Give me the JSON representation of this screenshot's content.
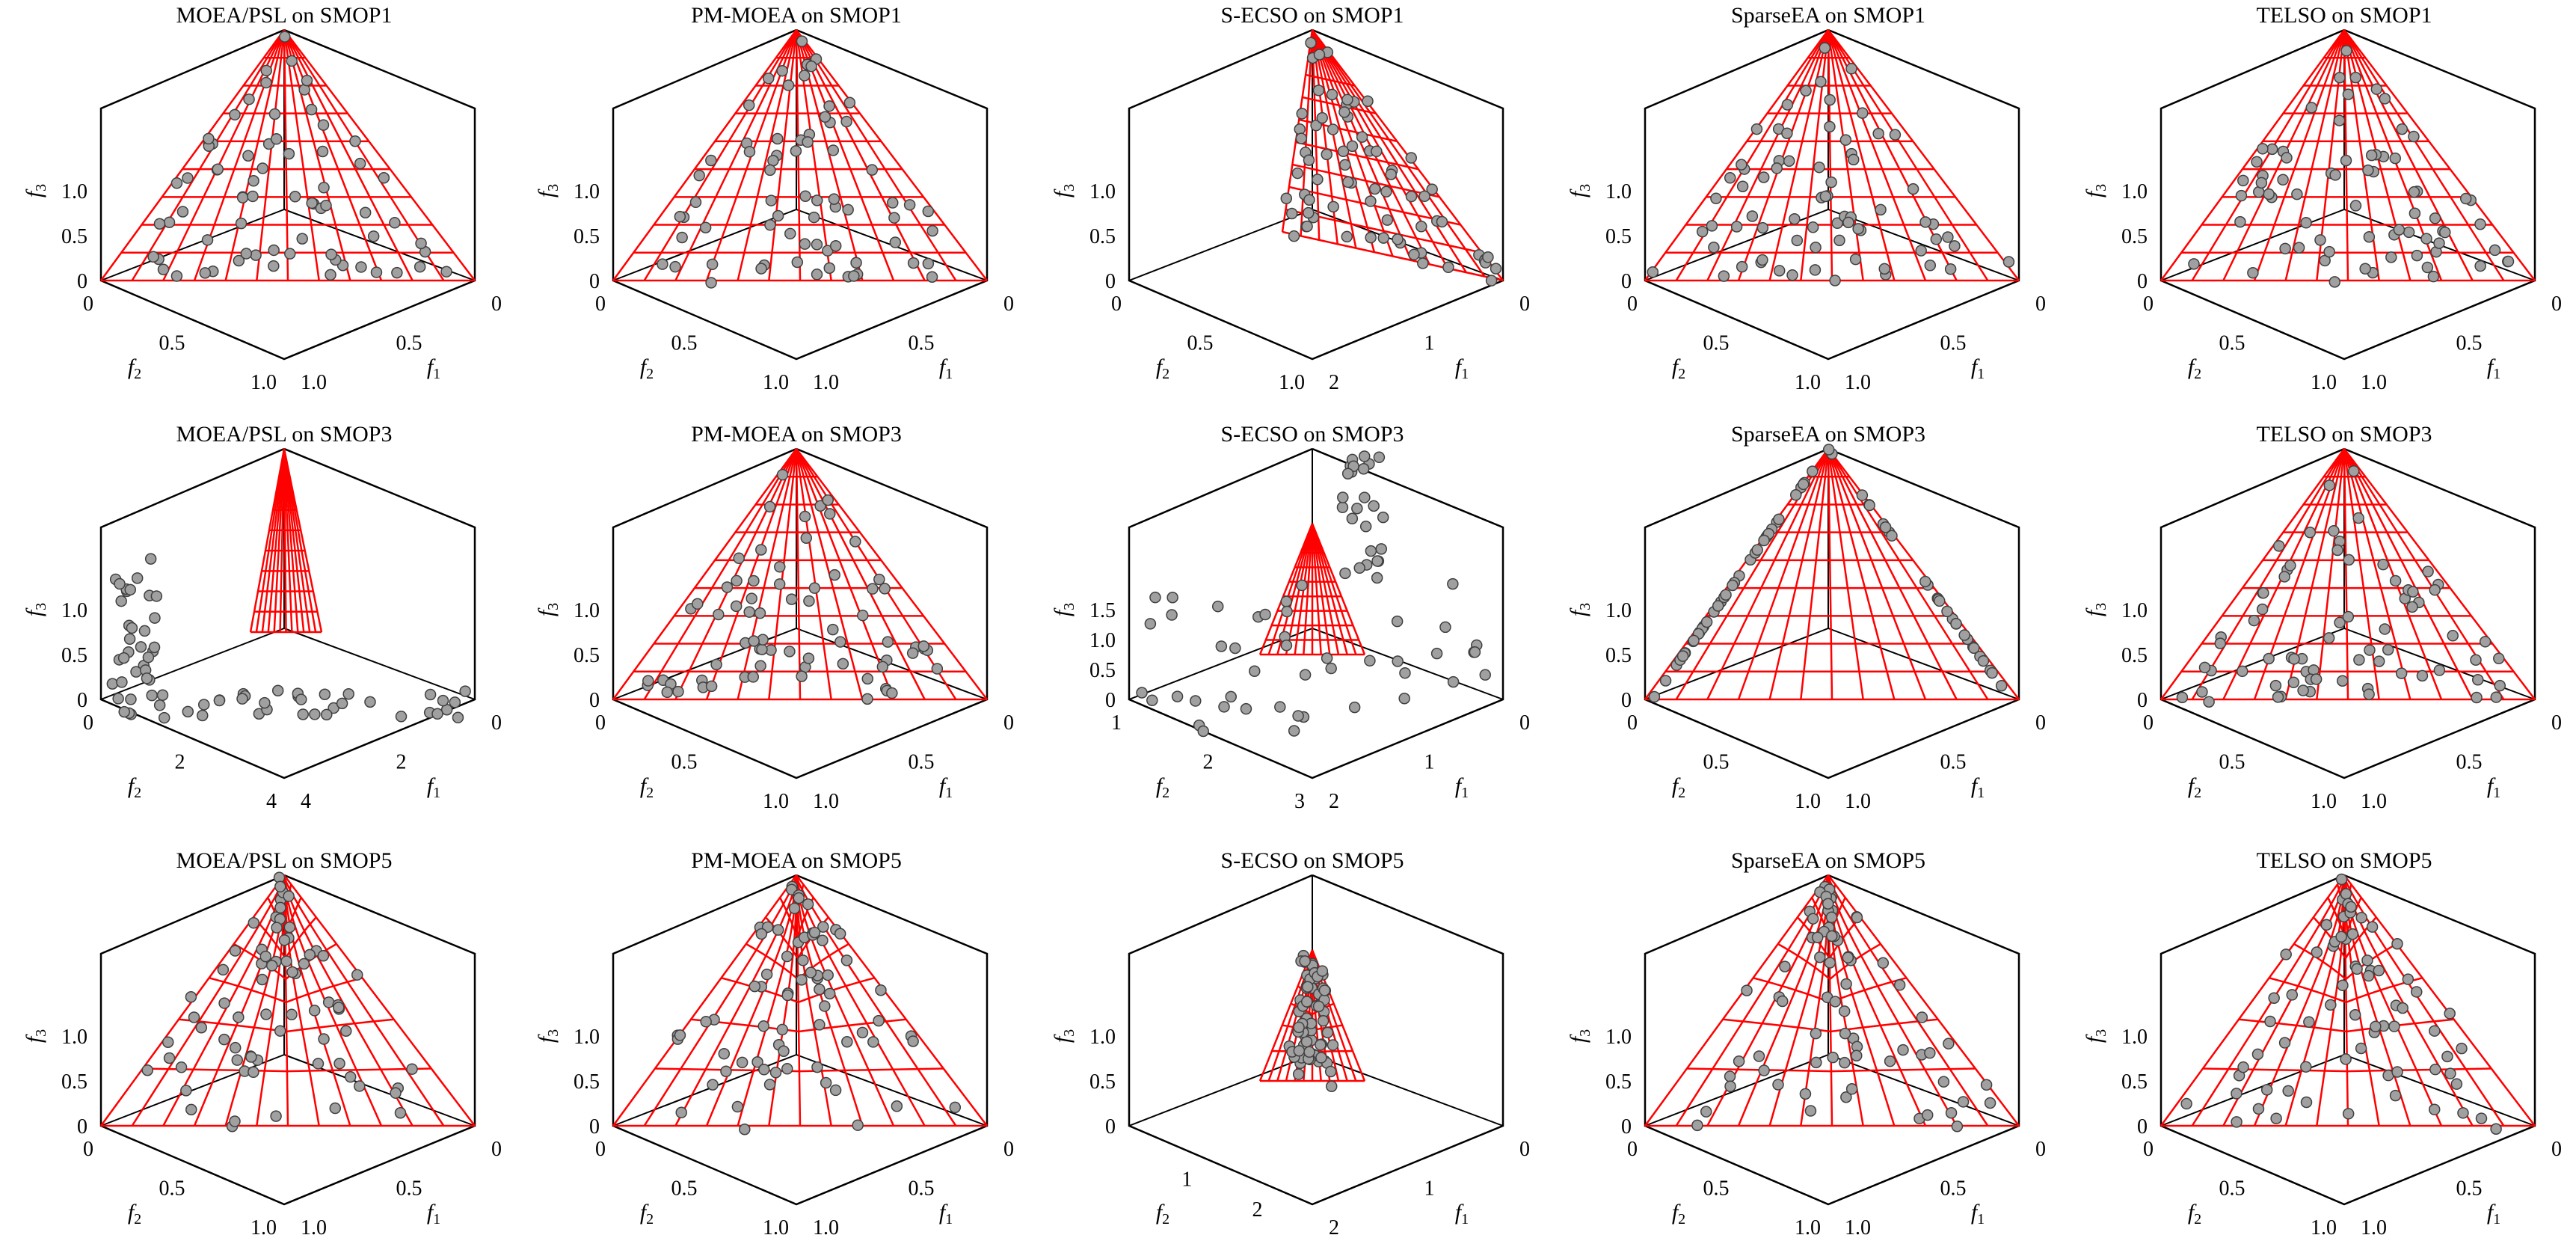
{
  "chart_data": [
    {
      "type": "scatter",
      "title": "MOEA/PSL on SMOP1",
      "xlabel": "f1",
      "ylabel": "f2",
      "zlabel": "f3",
      "ticks": {
        "z": [
          "0",
          "0.5",
          "1.0"
        ],
        "f2": [
          "0",
          "0.5",
          "1.0"
        ],
        "f1": [
          "0",
          "0.5",
          "1.0"
        ]
      },
      "front": "linear",
      "projection": "normal",
      "point_style": "spread"
    },
    {
      "type": "scatter",
      "title": "PM-MOEA on SMOP1",
      "xlabel": "f1",
      "ylabel": "f2",
      "zlabel": "f3",
      "ticks": {
        "z": [
          "0",
          "0.5",
          "1.0"
        ],
        "f2": [
          "0",
          "0.5",
          "1.0"
        ],
        "f1": [
          "0",
          "0.5",
          "1.0"
        ]
      },
      "front": "linear",
      "projection": "normal",
      "point_style": "uniform"
    },
    {
      "type": "scatter",
      "title": "S-ECSO on SMOP1",
      "xlabel": "f1",
      "ylabel": "f2",
      "zlabel": "f3",
      "ticks": {
        "z": [
          "0",
          "0.5",
          "1.0"
        ],
        "f2": [
          "0",
          "0.5",
          "1.0"
        ],
        "f1": [
          "0",
          "1",
          "2"
        ]
      },
      "front": "linear",
      "projection": "skewed",
      "point_style": "partial"
    },
    {
      "type": "scatter",
      "title": "SparseEA on SMOP1",
      "xlabel": "f1",
      "ylabel": "f2",
      "zlabel": "f3",
      "ticks": {
        "z": [
          "0",
          "0.5",
          "1.0"
        ],
        "f2": [
          "0",
          "0.5",
          "1.0"
        ],
        "f1": [
          "0",
          "0.5",
          "1.0"
        ]
      },
      "front": "linear",
      "projection": "normal",
      "point_style": "spread"
    },
    {
      "type": "scatter",
      "title": "TELSO on SMOP1",
      "xlabel": "f1",
      "ylabel": "f2",
      "zlabel": "f3",
      "ticks": {
        "z": [
          "0",
          "0.5",
          "1.0"
        ],
        "f2": [
          "0",
          "0.5",
          "1.0"
        ],
        "f1": [
          "0",
          "0.5",
          "1.0"
        ]
      },
      "front": "linear",
      "projection": "normal",
      "point_style": "uniform"
    },
    {
      "type": "scatter",
      "title": "MOEA/PSL on SMOP3",
      "xlabel": "f1",
      "ylabel": "f2",
      "zlabel": "f3",
      "ticks": {
        "z": [
          "0",
          "0.5",
          "1.0"
        ],
        "f2": [
          "0",
          "2",
          "4"
        ],
        "f1": [
          "0",
          "2",
          "4"
        ]
      },
      "front": "linear",
      "projection": "wide",
      "point_style": "scattered-wide"
    },
    {
      "type": "scatter",
      "title": "PM-MOEA on SMOP3",
      "xlabel": "f1",
      "ylabel": "f2",
      "zlabel": "f3",
      "ticks": {
        "z": [
          "0",
          "0.5",
          "1.0"
        ],
        "f2": [
          "0",
          "0.5",
          "1.0"
        ],
        "f1": [
          "0",
          "0.5",
          "1.0"
        ]
      },
      "front": "linear",
      "projection": "normal",
      "point_style": "partial-linear"
    },
    {
      "type": "scatter",
      "title": "S-ECSO on SMOP3",
      "xlabel": "f1",
      "ylabel": "f2",
      "zlabel": "f3",
      "ticks": {
        "z": [
          "0",
          "0.5",
          "1.0",
          "1.5"
        ],
        "f2": [
          "1",
          "2",
          "3"
        ],
        "f1": [
          "0",
          "1",
          "2"
        ]
      },
      "front": "linear",
      "projection": "small",
      "point_style": "scattered-small"
    },
    {
      "type": "scatter",
      "title": "SparseEA on SMOP3",
      "xlabel": "f1",
      "ylabel": "f2",
      "zlabel": "f3",
      "ticks": {
        "z": [
          "0",
          "0.5",
          "1.0"
        ],
        "f2": [
          "0",
          "0.5",
          "1.0"
        ],
        "f1": [
          "0",
          "0.5",
          "1.0"
        ]
      },
      "front": "linear",
      "projection": "normal",
      "point_style": "edges"
    },
    {
      "type": "scatter",
      "title": "TELSO on SMOP3",
      "xlabel": "f1",
      "ylabel": "f2",
      "zlabel": "f3",
      "ticks": {
        "z": [
          "0",
          "0.5",
          "1.0"
        ],
        "f2": [
          "0",
          "0.5",
          "1.0"
        ],
        "f1": [
          "0",
          "0.5",
          "1.0"
        ]
      },
      "front": "linear",
      "projection": "normal",
      "point_style": "uniform"
    },
    {
      "type": "scatter",
      "title": "MOEA/PSL on SMOP5",
      "xlabel": "f1",
      "ylabel": "f2",
      "zlabel": "f3",
      "ticks": {
        "z": [
          "0",
          "0.5",
          "1.0"
        ],
        "f2": [
          "0",
          "0.5",
          "1.0"
        ],
        "f1": [
          "0",
          "0.5",
          "1.0"
        ]
      },
      "front": "concave",
      "projection": "normal",
      "point_style": "spread"
    },
    {
      "type": "scatter",
      "title": "PM-MOEA on SMOP5",
      "xlabel": "f1",
      "ylabel": "f2",
      "zlabel": "f3",
      "ticks": {
        "z": [
          "0",
          "0.5",
          "1.0"
        ],
        "f2": [
          "0",
          "0.5",
          "1.0"
        ],
        "f1": [
          "0",
          "0.5",
          "1.0"
        ]
      },
      "front": "concave",
      "projection": "normal",
      "point_style": "spread"
    },
    {
      "type": "scatter",
      "title": "S-ECSO on SMOP5",
      "xlabel": "f1",
      "ylabel": "f2",
      "zlabel": "f3",
      "ticks": {
        "z": [
          "0",
          "0.5",
          "1.0"
        ],
        "f2": [
          "1",
          "2"
        ],
        "f1": [
          "0",
          "1",
          "2"
        ]
      },
      "front": "concave",
      "projection": "small",
      "point_style": "cluster"
    },
    {
      "type": "scatter",
      "title": "SparseEA on SMOP5",
      "xlabel": "f1",
      "ylabel": "f2",
      "zlabel": "f3",
      "ticks": {
        "z": [
          "0",
          "0.5",
          "1.0"
        ],
        "f2": [
          "0",
          "0.5",
          "1.0"
        ],
        "f1": [
          "0",
          "0.5",
          "1.0"
        ]
      },
      "front": "concave",
      "projection": "normal",
      "point_style": "spread"
    },
    {
      "type": "scatter",
      "title": "TELSO on SMOP5",
      "xlabel": "f1",
      "ylabel": "f2",
      "zlabel": "f3",
      "ticks": {
        "z": [
          "0",
          "0.5",
          "1.0"
        ],
        "f2": [
          "0",
          "0.5",
          "1.0"
        ],
        "f1": [
          "0",
          "0.5",
          "1.0"
        ]
      },
      "front": "concave",
      "projection": "normal",
      "point_style": "uniform"
    }
  ],
  "colors": {
    "front": "#ff0000",
    "points_fill": "#a0a0a0",
    "points_stroke": "#404040",
    "axes": "#000000"
  }
}
